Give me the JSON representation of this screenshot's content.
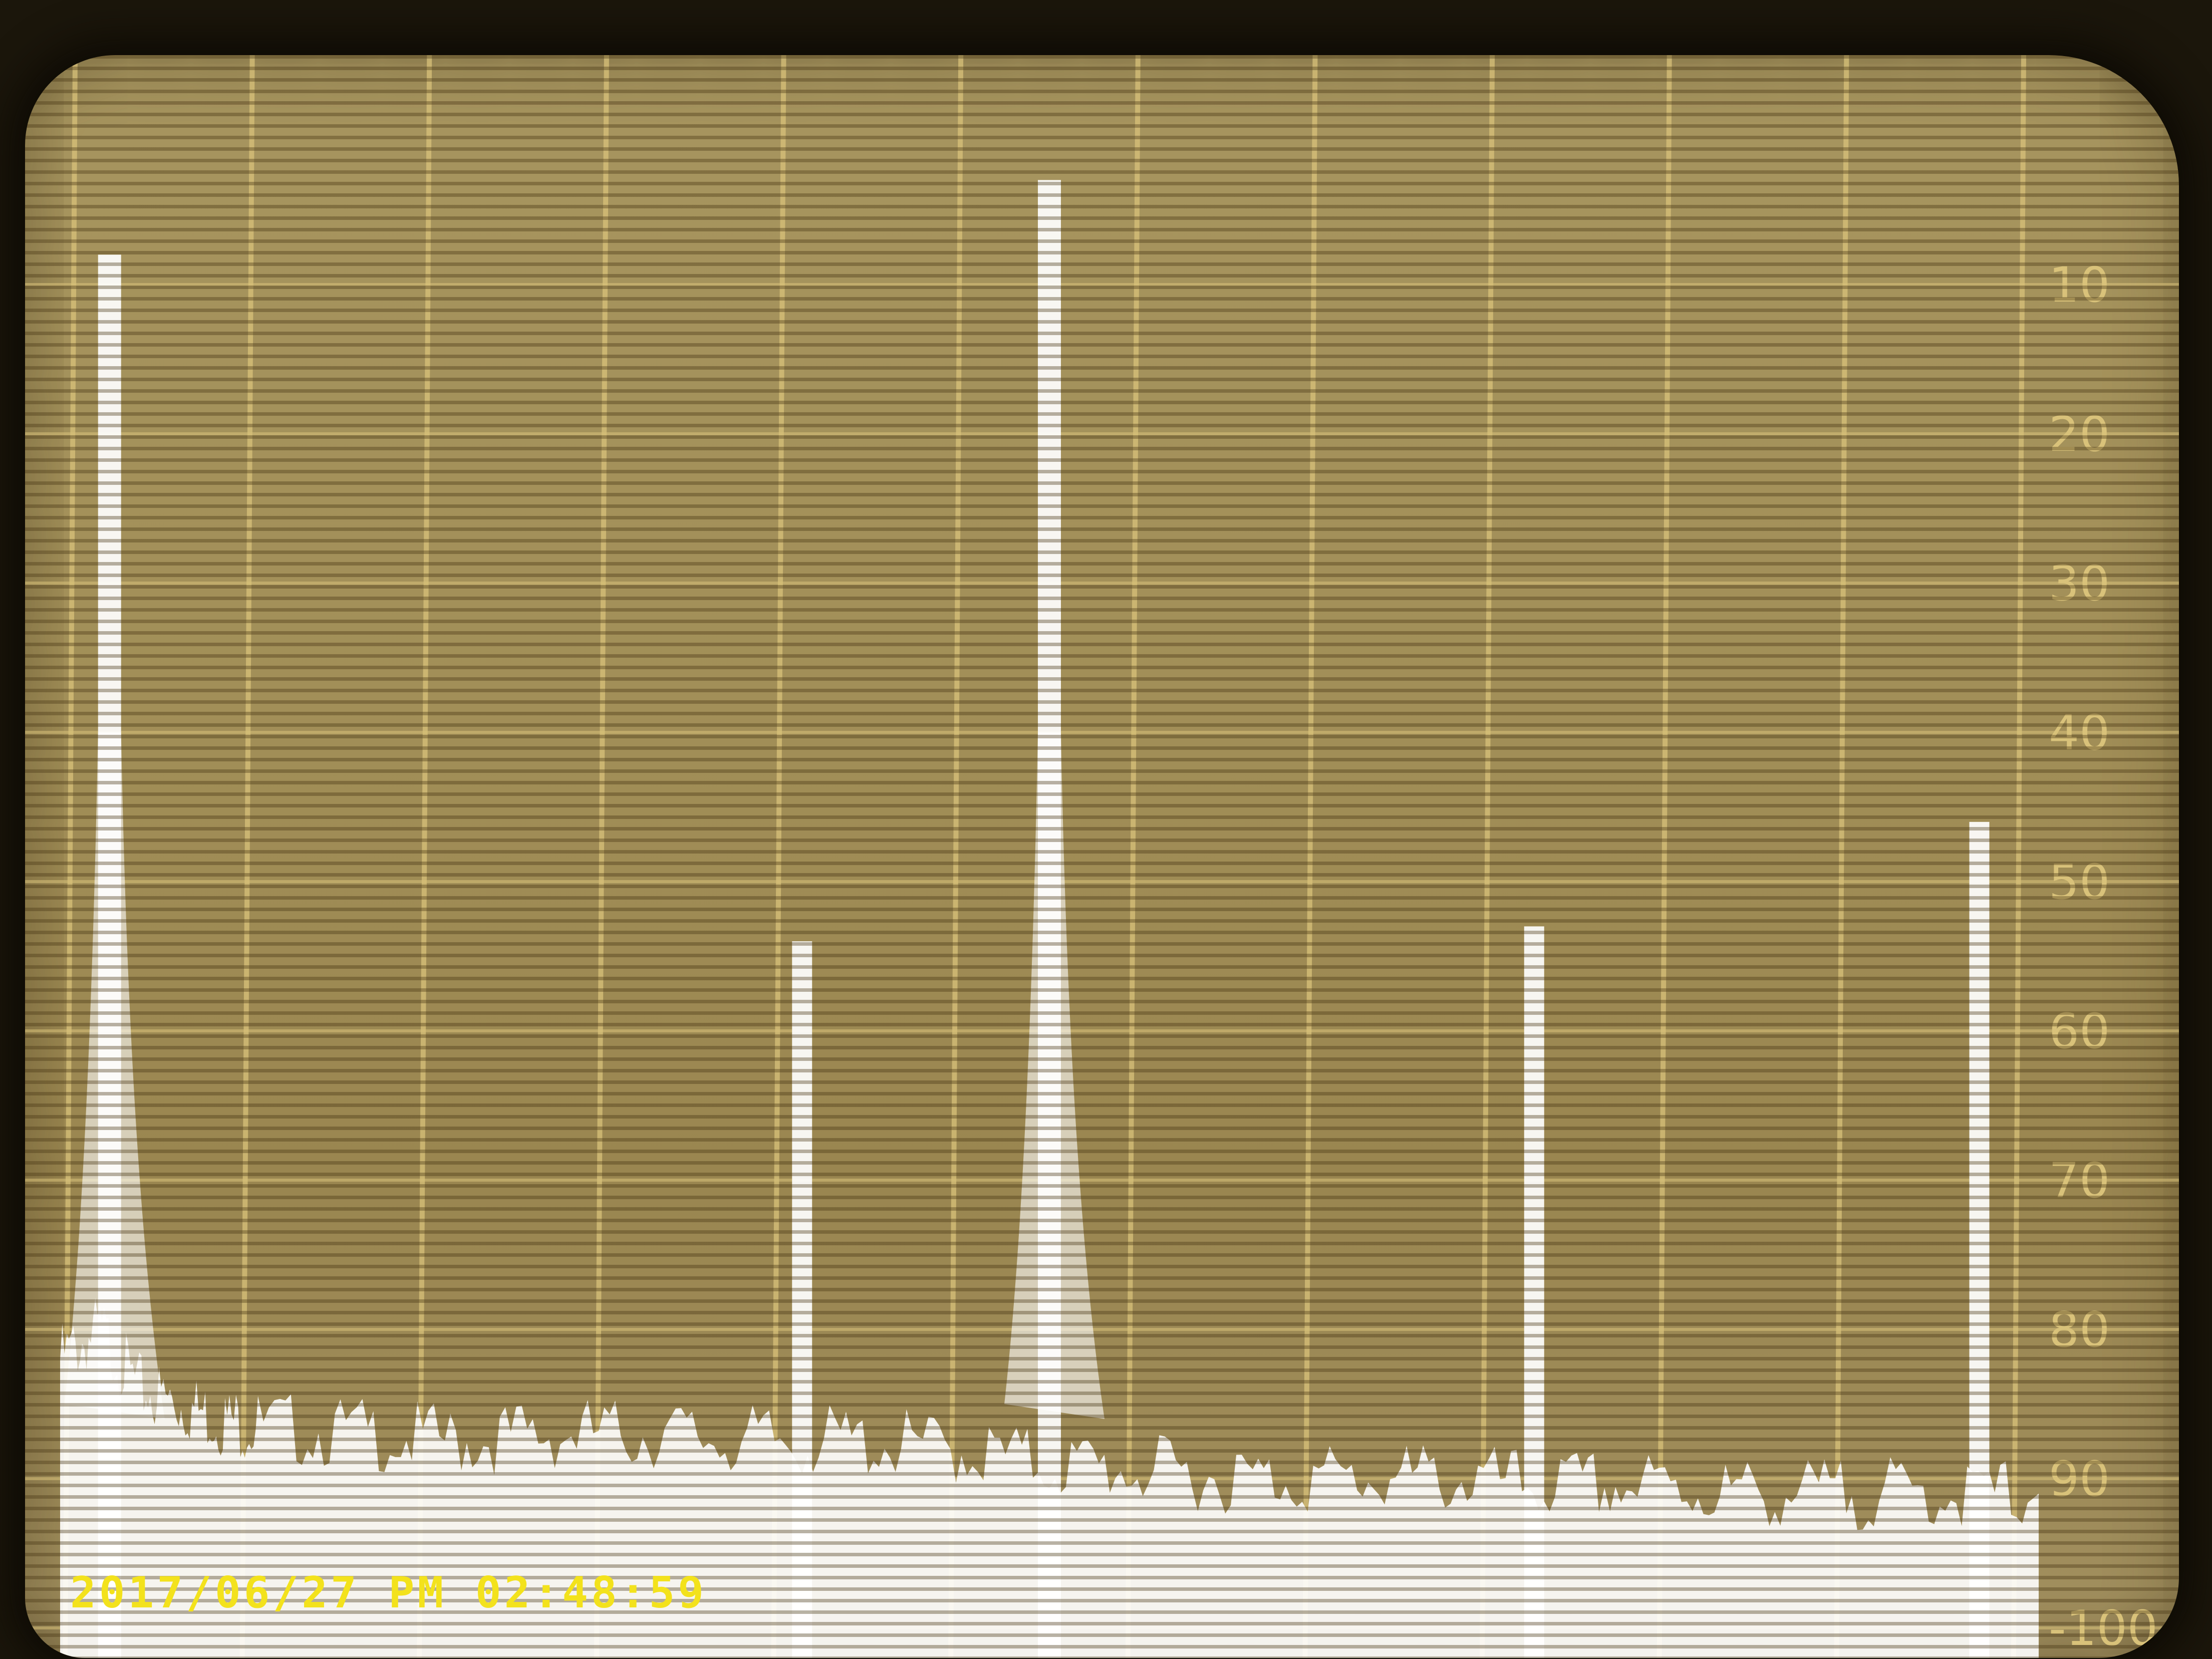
{
  "overlay": {
    "timestamp": "2017/06/27 PM 02:48:59"
  },
  "colors": {
    "screen": "#a7955f",
    "grid": "#d9c27a",
    "trace": "#ffffff",
    "timestamp": "#f3e21c"
  },
  "chart_data": {
    "type": "line",
    "title": "",
    "xlabel": "",
    "ylabel": "",
    "ylim": [
      -100,
      0
    ],
    "y_ticks": [
      {
        "value": -10,
        "label": "10"
      },
      {
        "value": -20,
        "label": "20"
      },
      {
        "value": -30,
        "label": "30"
      },
      {
        "value": -40,
        "label": "40"
      },
      {
        "value": -50,
        "label": "50"
      },
      {
        "value": -60,
        "label": "60"
      },
      {
        "value": -70,
        "label": "70"
      },
      {
        "value": -80,
        "label": "80"
      },
      {
        "value": -90,
        "label": "90"
      },
      {
        "value": -100,
        "label": "-100"
      }
    ],
    "x_divisions": 11,
    "grid": true,
    "noise_floor": {
      "x": [
        0.0,
        0.02,
        0.04,
        0.06,
        0.08,
        0.1,
        0.15,
        0.2,
        0.25,
        0.3,
        0.35,
        0.4,
        0.45,
        0.5,
        0.55,
        0.6,
        0.65,
        0.7,
        0.75,
        0.8,
        0.85,
        0.9,
        0.95,
        1.0
      ],
      "y": [
        -82,
        -80,
        -84,
        -85,
        -86,
        -86.5,
        -87,
        -87.5,
        -87,
        -87,
        -87.5,
        -87.5,
        -88,
        -89,
        -89.5,
        -90,
        -90,
        -90,
        -90.5,
        -90.5,
        -91,
        -91,
        -91,
        -91
      ]
    },
    "peaks": [
      {
        "x": 0.025,
        "y": -8
      },
      {
        "x": 0.375,
        "y": -54
      },
      {
        "x": 0.5,
        "y": -3
      },
      {
        "x": 0.745,
        "y": -53
      },
      {
        "x": 0.97,
        "y": -46
      }
    ]
  }
}
